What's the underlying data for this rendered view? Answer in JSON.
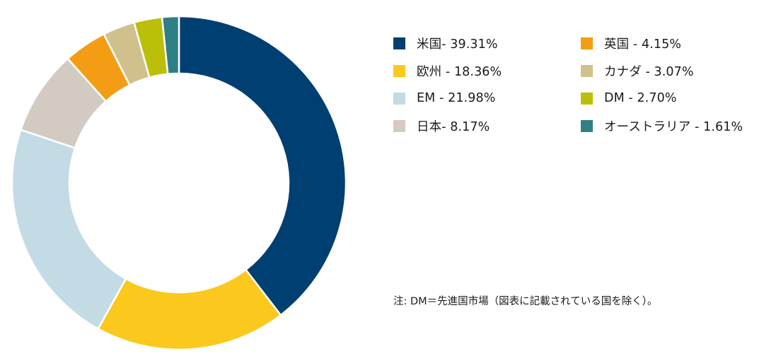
{
  "chart_data": {
    "type": "pie",
    "style": "donut",
    "categories": [
      "米国",
      "欧州",
      "EM",
      "日本",
      "英国",
      "カナダ",
      "DM",
      "オーストラリア"
    ],
    "values": [
      39.31,
      18.36,
      21.98,
      8.17,
      4.15,
      3.07,
      2.7,
      1.61
    ],
    "unit": "%",
    "slice_order": [
      "米国",
      "欧州",
      "EM",
      "日本",
      "英国",
      "カナダ",
      "DM",
      "オーストラリア"
    ],
    "colors": {
      "米国": "#003f72",
      "欧州": "#fbc81e",
      "EM": "#c2dbe5",
      "日本": "#d3cbc2",
      "英国": "#f49d14",
      "カナダ": "#d0c08c",
      "DM": "#bcbf08",
      "オーストラリア": "#2f7f86"
    },
    "legend": {
      "placement": "right",
      "columns": 2,
      "labels": [
        "米国- 39.31%",
        "欧州 - 18.36%",
        "EM - 21.98%",
        "日本- 8.17%",
        "英国 - 4.15%",
        "カナダ - 3.07%",
        "DM - 2.70%",
        "オーストラリア - 1.61%"
      ]
    },
    "note": "注: DM＝先進国市場（図表に記載されている国を除く）。"
  }
}
